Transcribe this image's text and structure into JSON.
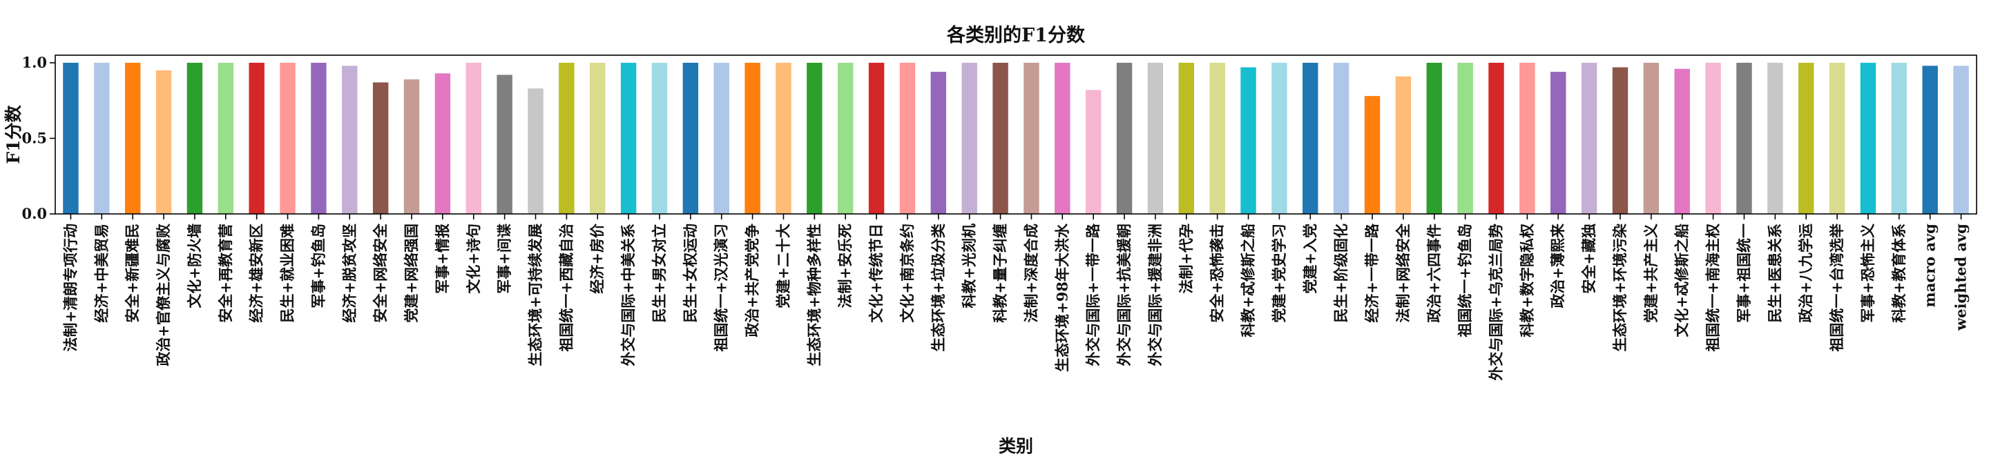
{
  "chart_data": {
    "type": "bar",
    "title": "各类别的F1分数",
    "xlabel": "类别",
    "ylabel": "F1分数",
    "ylim": [
      0,
      1.05
    ],
    "yticks": [
      0.0,
      0.5,
      1.0
    ],
    "ytick_labels": [
      "0.0",
      "0.5",
      "1.0"
    ],
    "grid": false,
    "categories": [
      "法制+清朗专项行动",
      "经济+中美贸易",
      "安全+新疆难民",
      "政治+官僚主义与腐败",
      "文化+防火墙",
      "安全+再教育营",
      "经济+雄安新区",
      "民生+就业困难",
      "军事+钓鱼岛",
      "经济+脱贫攻坚",
      "安全+网络安全",
      "党建+网络强国",
      "军事+情报",
      "文化+诗句",
      "军事+间谍",
      "生态环境+可持续发展",
      "祖国统一+西藏自治",
      "经济+房价",
      "外交与国际+中美关系",
      "民生+男女对立",
      "民生+女权运动",
      "祖国统一+汉光演习",
      "政治+共产党党争",
      "党建+二十大",
      "生态环境+物种多样性",
      "法制+安乐死",
      "文化+传统节日",
      "文化+南京条约",
      "生态环境+垃圾分类",
      "科教+光刻机",
      "科教+量子纠缠",
      "法制+深度合成",
      "生态环境+98年大洪水",
      "外交与国际+一带一路",
      "外交与国际+抗美援朝",
      "外交与国际+援建非洲",
      "法制+代孕",
      "安全+恐怖袭击",
      "科教+忒修斯之船",
      "党建+党史学习",
      "党建+入党",
      "民生+阶级固化",
      "经济+一带一路",
      "法制+网络安全",
      "政治+六四事件",
      "祖国统一+钓鱼岛",
      "外交与国际+乌克兰局势",
      "科教+数字隐私权",
      "政治+薄熙来",
      "安全+藏独",
      "生态环境+环境污染",
      "党建+共产主义",
      "文化+忒修斯之船",
      "祖国统一+南海主权",
      "军事+祖国统一",
      "民生+医患关系",
      "政治+八九学运",
      "祖国统一+台湾选举",
      "军事+恐怖主义",
      "科教+教育体系",
      "macro avg",
      "weighted avg"
    ],
    "values": [
      1.0,
      1.0,
      1.0,
      0.95,
      1.0,
      1.0,
      1.0,
      1.0,
      1.0,
      0.98,
      0.87,
      0.89,
      0.93,
      1.0,
      0.92,
      0.83,
      1.0,
      1.0,
      1.0,
      1.0,
      1.0,
      1.0,
      1.0,
      1.0,
      1.0,
      1.0,
      1.0,
      1.0,
      0.94,
      1.0,
      1.0,
      1.0,
      1.0,
      0.82,
      1.0,
      1.0,
      1.0,
      1.0,
      0.97,
      1.0,
      1.0,
      1.0,
      0.78,
      0.91,
      1.0,
      1.0,
      1.0,
      1.0,
      0.94,
      1.0,
      0.97,
      1.0,
      0.96,
      1.0,
      1.0,
      1.0,
      1.0,
      1.0,
      1.0,
      1.0,
      0.98,
      0.98
    ],
    "colors": [
      "#1f77b4",
      "#aec7e8",
      "#ff7f0e",
      "#ffbb78",
      "#2ca02c",
      "#98df8a",
      "#d62728",
      "#ff9896",
      "#9467bd",
      "#c5b0d5",
      "#8c564b",
      "#c49c94",
      "#e377c2",
      "#f7b6d2",
      "#7f7f7f",
      "#c7c7c7",
      "#bcbd22",
      "#dbdb8d",
      "#17becf",
      "#9edae5"
    ]
  }
}
